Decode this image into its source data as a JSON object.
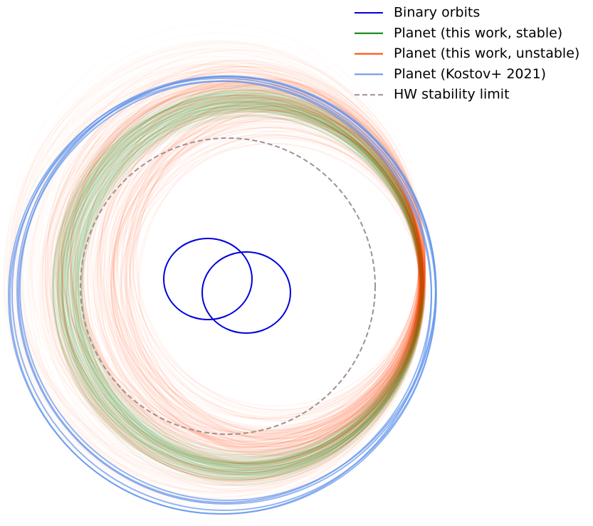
{
  "legend": {
    "items": [
      {
        "label": "Binary orbits",
        "color": "#0000dd",
        "style": "solid"
      },
      {
        "label": "Planet (this work, stable)",
        "color": "#008000",
        "style": "solid"
      },
      {
        "label": "Planet (this work, unstable)",
        "color": "#ff4500",
        "style": "solid"
      },
      {
        "label": "Planet (Kostov+ 2021)",
        "color": "#6495ed",
        "style": "solid"
      },
      {
        "label": "HW stability limit",
        "color": "#a09090",
        "style": "dashed"
      }
    ]
  }
}
